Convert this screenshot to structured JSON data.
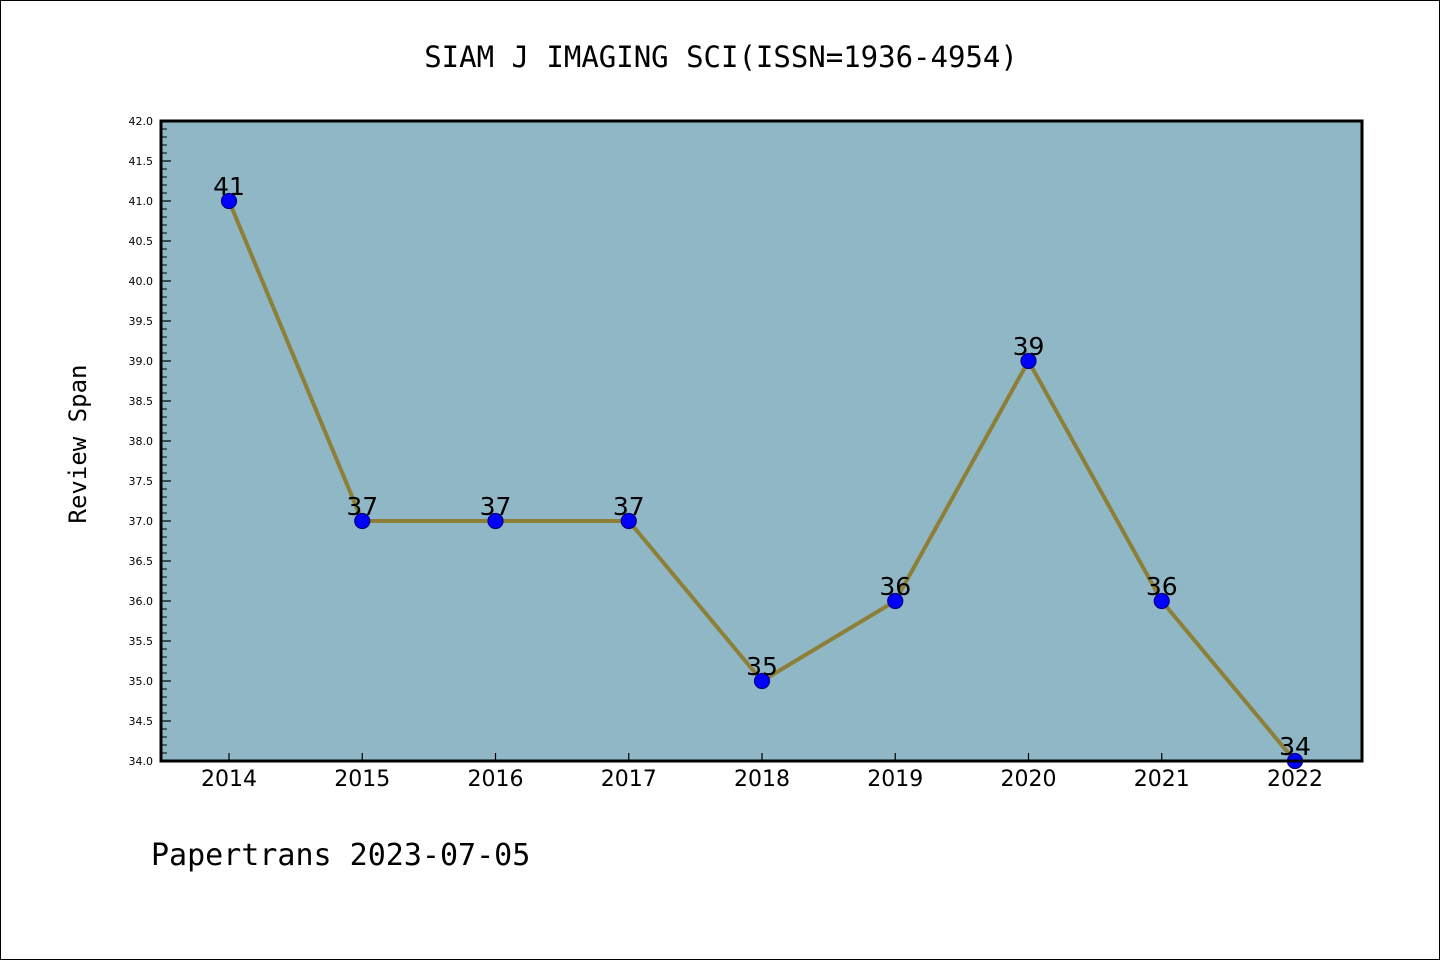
{
  "chart_data": {
    "type": "line",
    "title": "SIAM J IMAGING SCI(ISSN=1936-4954)",
    "xlabel": "",
    "ylabel": "Review Span",
    "categories": [
      "2014",
      "2015",
      "2016",
      "2017",
      "2018",
      "2019",
      "2020",
      "2021",
      "2022"
    ],
    "values": [
      41,
      37,
      37,
      37,
      35,
      36,
      39,
      36,
      34
    ],
    "data_labels": [
      "41",
      "37",
      "37",
      "37",
      "35",
      "36",
      "39",
      "36",
      "34"
    ],
    "ylim": [
      34.0,
      42.0
    ],
    "yticks": [
      "34.0",
      "34.5",
      "35.0",
      "35.5",
      "36.0",
      "36.5",
      "37.0",
      "37.5",
      "38.0",
      "38.5",
      "39.0",
      "39.5",
      "40.0",
      "40.5",
      "41.0",
      "41.5",
      "42.0"
    ],
    "grid": false,
    "legend": "none",
    "colors": {
      "plot_background": "#8fb7c5",
      "line": "#8e7f38",
      "marker_fill": "#0000ff",
      "marker_edge": "#000080",
      "axes": "#000000"
    }
  },
  "footer": {
    "watermark": "Papertrans 2023-07-05"
  }
}
